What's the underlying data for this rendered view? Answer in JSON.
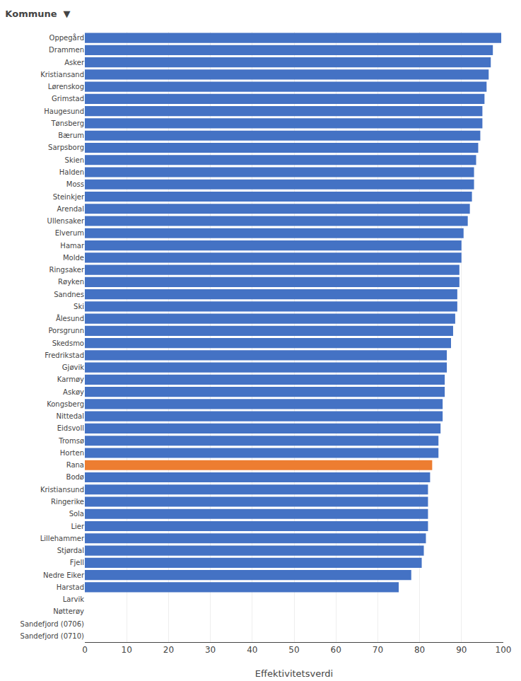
{
  "chart_data": {
    "type": "bar",
    "orientation": "horizontal",
    "title": "Kommune  ▼",
    "x_label": "Effektivitetsverdi",
    "categories": [
      "Oppegård",
      "Drammen",
      "Asker",
      "Kristiansand",
      "Lørenskog",
      "Grimstad",
      "Haugesund",
      "Tønsberg",
      "Bærum",
      "Sarpsborg",
      "Skien",
      "Halden",
      "Moss",
      "Steinkjer",
      "Arendal",
      "Ullensaker",
      "Elverum",
      "Hamar",
      "Molde",
      "Ringsaker",
      "Røyken",
      "Sandnes",
      "Ski",
      "Ålesund",
      "Porsgrunn",
      "Skedsmo",
      "Fredrikstad",
      "Gjøvik",
      "Karmøy",
      "Askøy",
      "Kongsberg",
      "Nittedal",
      "Eidsvoll",
      "Tromsø",
      "Horten",
      "Rana",
      "Bodø",
      "Kristiansund",
      "Ringerike",
      "Sola",
      "Lier",
      "Lillehammer",
      "Stjørdal",
      "Fjell",
      "Nedre Eiker",
      "Harstad",
      "Larvik",
      "Nøtterøy",
      "Sandefjord (0706)",
      "Sandefjord (0710)"
    ],
    "values": [
      99.5,
      97.5,
      97.0,
      96.5,
      96.0,
      95.5,
      95.0,
      95.0,
      94.5,
      94.0,
      93.5,
      93.0,
      93.0,
      92.5,
      92.0,
      91.5,
      90.5,
      90.0,
      90.0,
      89.5,
      89.5,
      89.0,
      89.0,
      88.5,
      88.0,
      87.5,
      86.5,
      86.5,
      86.0,
      86.0,
      85.5,
      85.5,
      85.0,
      84.5,
      84.5,
      83.0,
      82.5,
      82.0,
      82.0,
      82.0,
      82.0,
      81.5,
      81.0,
      80.5,
      78.0,
      75.0,
      0.0,
      0.0,
      0.0,
      0.0
    ],
    "colors": [
      "#4472C4",
      "#4472C4",
      "#4472C4",
      "#4472C4",
      "#4472C4",
      "#4472C4",
      "#4472C4",
      "#4472C4",
      "#4472C4",
      "#4472C4",
      "#4472C4",
      "#4472C4",
      "#4472C4",
      "#4472C4",
      "#4472C4",
      "#4472C4",
      "#4472C4",
      "#4472C4",
      "#4472C4",
      "#4472C4",
      "#4472C4",
      "#4472C4",
      "#4472C4",
      "#4472C4",
      "#4472C4",
      "#4472C4",
      "#4472C4",
      "#4472C4",
      "#4472C4",
      "#4472C4",
      "#4472C4",
      "#4472C4",
      "#4472C4",
      "#4472C4",
      "#4472C4",
      "#ED7D31",
      "#4472C4",
      "#4472C4",
      "#4472C4",
      "#4472C4",
      "#4472C4",
      "#4472C4",
      "#4472C4",
      "#4472C4",
      "#4472C4",
      "#4472C4",
      "#4472C4",
      "#4472C4",
      "#4472C4",
      "#4472C4"
    ],
    "xlim": [
      0,
      100
    ],
    "xticks": [
      0,
      10,
      20,
      30,
      40,
      50,
      60,
      70,
      80,
      90,
      100
    ],
    "grid": true
  }
}
